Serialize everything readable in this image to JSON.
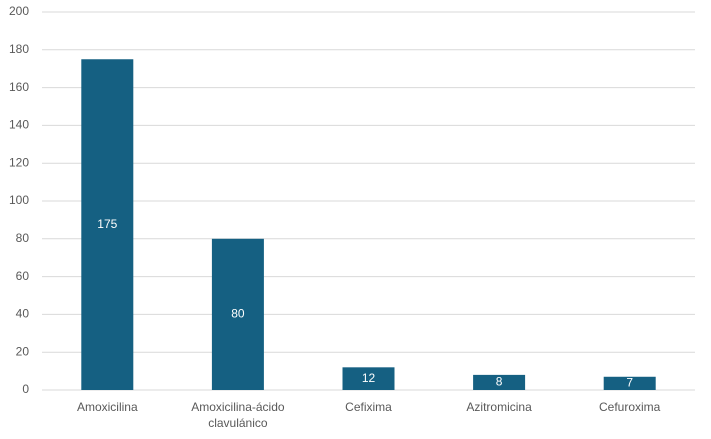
{
  "chart_data": {
    "type": "bar",
    "categories": [
      "Amoxicilina",
      "Amoxicilina-ácido clavulánico",
      "Cefixima",
      "Azitromicina",
      "Cefuroxima"
    ],
    "values": [
      175,
      80,
      12,
      8,
      7
    ],
    "color": "#156082",
    "ylim": [
      0,
      200
    ],
    "yticks": [
      0,
      20,
      40,
      60,
      80,
      100,
      120,
      140,
      160,
      180,
      200
    ],
    "grid": true,
    "data_labels": true
  }
}
